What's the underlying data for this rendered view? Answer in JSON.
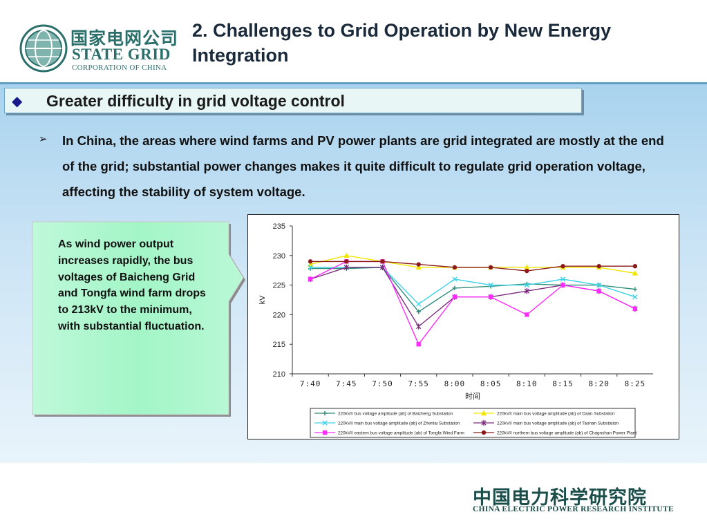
{
  "header": {
    "logo_cn": "国家电网公司",
    "logo_en": "STATE GRID",
    "logo_corp": "CORPORATION OF CHINA",
    "title": "2. Challenges to Grid Operation by New Energy Integration"
  },
  "section": {
    "bullet": "◆",
    "heading": "Greater difficulty in grid voltage control"
  },
  "body": {
    "bullet": "➢",
    "text": "In China, the areas where wind farms and PV power plants  are grid integrated are mostly at the end of the grid; substantial power changes makes it quite  difficult to regulate grid operation voltage,  affecting the stability of system voltage."
  },
  "callout": {
    "text": "As wind power output increases rapidly, the bus voltages of Baicheng Grid and Tongfa wind farm drops to 213kV to the minimum, with substantial fluctuation.",
    "fill_color": "#a3f5c7"
  },
  "footer": {
    "cn": "中国电力科学研究院",
    "en": "CHINA ELECTRIC POWER RESEARCH INSTITUTE"
  },
  "chart_data": {
    "type": "line",
    "title": "",
    "xlabel": "时间",
    "ylabel": "kV",
    "ylim": [
      210,
      235
    ],
    "yticks": [
      "210",
      "215",
      "220",
      "225",
      "230",
      "235"
    ],
    "categories": [
      "7:40",
      "7:45",
      "7:50",
      "7:55",
      "8:00",
      "8:05",
      "8:10",
      "8:15",
      "8:20",
      "8:25"
    ],
    "grid": false,
    "legend_position": "bottom",
    "series": [
      {
        "name": "220kVII bus voltage amplitude (ab) of Baicheng Substation",
        "color": "#2e8b7a",
        "marker": "plus",
        "values": [
          227.8,
          227.8,
          228.0,
          220.5,
          224.5,
          224.8,
          225.2,
          225.0,
          225.0,
          224.3
        ]
      },
      {
        "name": "220kVII main bus voltage amplitude (ab) of Daan Substation",
        "color": "#f2e600",
        "marker": "triangle",
        "values": [
          228.5,
          230.0,
          229.0,
          228.0,
          228.0,
          228.0,
          228.0,
          228.0,
          228.0,
          227.0
        ]
      },
      {
        "name": "220kVII main bus voltage amplitude (ab) of Zhenlai Substation",
        "color": "#3ed3e8",
        "marker": "x",
        "values": [
          228.0,
          228.0,
          228.0,
          221.8,
          226.0,
          225.0,
          225.0,
          226.0,
          225.0,
          223.0
        ]
      },
      {
        "name": "220kVII main bus voltage amplitude (ab) of Taonan Substation",
        "color": "#7a2a7a",
        "marker": "star",
        "values": [
          226.0,
          228.0,
          228.0,
          218.0,
          223.0,
          223.0,
          224.0,
          225.0,
          224.0,
          221.0
        ]
      },
      {
        "name": "220kVII eastern bus voltage amplitude (ab) of Tongfa Wind Farm",
        "color": "#ff2cff",
        "marker": "square",
        "values": [
          226.0,
          229.0,
          229.0,
          215.0,
          223.0,
          223.0,
          220.0,
          225.0,
          224.0,
          221.0
        ]
      },
      {
        "name": "220kVII northern bus voltage amplitude (ab) of Chagnshan Power Plant",
        "color": "#8b1a1a",
        "marker": "circle",
        "values": [
          229.0,
          229.0,
          229.0,
          228.5,
          228.0,
          228.0,
          227.4,
          228.2,
          228.2,
          228.2
        ]
      }
    ]
  }
}
